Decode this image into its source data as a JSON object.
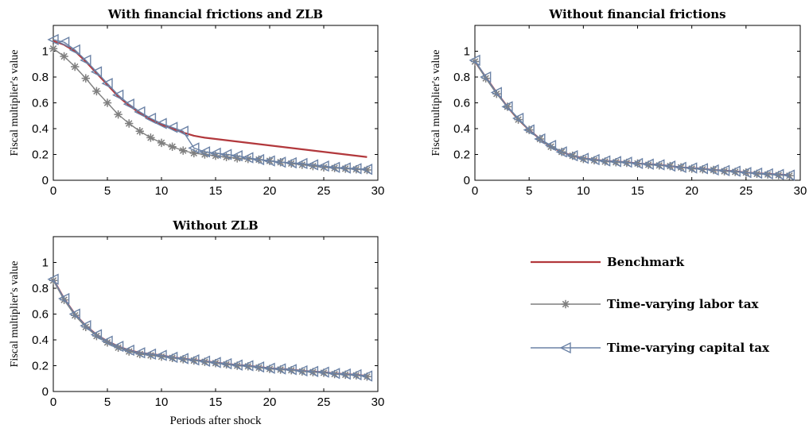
{
  "colors": {
    "benchmark": "#b2383c",
    "labor": "#7f7f7f",
    "capital": "#6b82a6"
  },
  "legend": {
    "placement": "bottom-right",
    "items": [
      {
        "label": "Benchmark",
        "marker": "none",
        "color": "#b2383c"
      },
      {
        "label": "Time-varying labor tax",
        "marker": "asterisk",
        "color": "#7f7f7f"
      },
      {
        "label": "Time-varying capital tax",
        "marker": "left-triangle",
        "color": "#6b82a6"
      }
    ]
  },
  "chart_data": [
    {
      "type": "line",
      "title": "With financial frictions and ZLB",
      "xlabel": "",
      "ylabel": "Fiscal multiplier's value",
      "xlim": [
        0,
        30
      ],
      "ylim": [
        0,
        1.2
      ],
      "xticks": [
        0,
        5,
        10,
        15,
        20,
        25,
        30
      ],
      "yticks": [
        0,
        0.2,
        0.4,
        0.6,
        0.8,
        1
      ],
      "grid": false,
      "x": [
        0,
        1,
        2,
        3,
        4,
        5,
        6,
        7,
        8,
        9,
        10,
        11,
        12,
        13,
        14,
        15,
        16,
        17,
        18,
        19,
        20,
        21,
        22,
        23,
        24,
        25,
        26,
        27,
        28,
        29
      ],
      "series": [
        {
          "name": "Benchmark",
          "values": [
            1.08,
            1.05,
            1.0,
            0.92,
            0.83,
            0.74,
            0.65,
            0.58,
            0.52,
            0.47,
            0.43,
            0.4,
            0.37,
            0.345,
            0.33,
            0.32,
            0.31,
            0.3,
            0.29,
            0.28,
            0.27,
            0.26,
            0.25,
            0.24,
            0.23,
            0.22,
            0.21,
            0.2,
            0.19,
            0.18
          ]
        },
        {
          "name": "Time-varying labor tax",
          "values": [
            1.02,
            0.96,
            0.88,
            0.79,
            0.69,
            0.6,
            0.51,
            0.44,
            0.38,
            0.33,
            0.29,
            0.26,
            0.23,
            0.21,
            0.2,
            0.19,
            0.18,
            0.17,
            0.165,
            0.16,
            0.15,
            0.14,
            0.13,
            0.12,
            0.11,
            0.1,
            0.095,
            0.09,
            0.085,
            0.08
          ]
        },
        {
          "name": "Time-varying capital tax",
          "values": [
            1.09,
            1.07,
            1.01,
            0.93,
            0.84,
            0.75,
            0.66,
            0.59,
            0.53,
            0.48,
            0.44,
            0.41,
            0.38,
            0.25,
            0.22,
            0.21,
            0.2,
            0.19,
            0.175,
            0.16,
            0.15,
            0.14,
            0.135,
            0.13,
            0.12,
            0.11,
            0.1,
            0.095,
            0.09,
            0.085
          ]
        }
      ]
    },
    {
      "type": "line",
      "title": "Without financial frictions",
      "xlabel": "",
      "ylabel": "Fiscal multiplier's value",
      "xlim": [
        0,
        30
      ],
      "ylim": [
        0,
        1.2
      ],
      "xticks": [
        0,
        5,
        10,
        15,
        20,
        25,
        30
      ],
      "yticks": [
        0,
        0.2,
        0.4,
        0.6,
        0.8,
        1
      ],
      "grid": false,
      "x": [
        0,
        1,
        2,
        3,
        4,
        5,
        6,
        7,
        8,
        9,
        10,
        11,
        12,
        13,
        14,
        15,
        16,
        17,
        18,
        19,
        20,
        21,
        22,
        23,
        24,
        25,
        26,
        27,
        28,
        29
      ],
      "series": [
        {
          "name": "Benchmark",
          "values": [
            0.92,
            0.8,
            0.68,
            0.57,
            0.47,
            0.39,
            0.32,
            0.26,
            0.22,
            0.19,
            0.17,
            0.16,
            0.15,
            0.145,
            0.14,
            0.13,
            0.125,
            0.12,
            0.11,
            0.1,
            0.095,
            0.09,
            0.08,
            0.075,
            0.07,
            0.06,
            0.055,
            0.05,
            0.045,
            0.04
          ]
        },
        {
          "name": "Time-varying labor tax",
          "values": [
            0.92,
            0.79,
            0.67,
            0.57,
            0.47,
            0.39,
            0.32,
            0.26,
            0.22,
            0.19,
            0.165,
            0.155,
            0.145,
            0.14,
            0.135,
            0.13,
            0.12,
            0.115,
            0.11,
            0.1,
            0.09,
            0.085,
            0.08,
            0.07,
            0.065,
            0.06,
            0.05,
            0.045,
            0.04,
            0.035
          ]
        },
        {
          "name": "Time-varying capital tax",
          "values": [
            0.93,
            0.8,
            0.68,
            0.57,
            0.48,
            0.39,
            0.32,
            0.27,
            0.22,
            0.19,
            0.17,
            0.16,
            0.15,
            0.145,
            0.14,
            0.13,
            0.125,
            0.12,
            0.11,
            0.1,
            0.095,
            0.09,
            0.08,
            0.075,
            0.07,
            0.06,
            0.055,
            0.05,
            0.045,
            0.04
          ]
        }
      ]
    },
    {
      "type": "line",
      "title": "Without ZLB",
      "xlabel": "Periods after shock",
      "ylabel": "Fiscal multiplier's value",
      "xlim": [
        0,
        30
      ],
      "ylim": [
        0,
        1.2
      ],
      "xticks": [
        0,
        5,
        10,
        15,
        20,
        25,
        30
      ],
      "yticks": [
        0,
        0.2,
        0.4,
        0.6,
        0.8,
        1
      ],
      "grid": false,
      "x": [
        0,
        1,
        2,
        3,
        4,
        5,
        6,
        7,
        8,
        9,
        10,
        11,
        12,
        13,
        14,
        15,
        16,
        17,
        18,
        19,
        20,
        21,
        22,
        23,
        24,
        25,
        26,
        27,
        28,
        29
      ],
      "series": [
        {
          "name": "Benchmark",
          "values": [
            0.87,
            0.72,
            0.6,
            0.51,
            0.44,
            0.39,
            0.35,
            0.32,
            0.3,
            0.29,
            0.28,
            0.265,
            0.255,
            0.245,
            0.235,
            0.225,
            0.215,
            0.205,
            0.2,
            0.19,
            0.18,
            0.175,
            0.17,
            0.16,
            0.155,
            0.15,
            0.14,
            0.135,
            0.13,
            0.12
          ]
        },
        {
          "name": "Time-varying labor tax",
          "values": [
            0.86,
            0.71,
            0.59,
            0.5,
            0.43,
            0.38,
            0.34,
            0.31,
            0.29,
            0.28,
            0.27,
            0.26,
            0.25,
            0.24,
            0.23,
            0.22,
            0.21,
            0.2,
            0.195,
            0.185,
            0.175,
            0.17,
            0.165,
            0.155,
            0.15,
            0.145,
            0.135,
            0.13,
            0.125,
            0.115
          ]
        },
        {
          "name": "Time-varying capital tax",
          "values": [
            0.87,
            0.72,
            0.6,
            0.51,
            0.44,
            0.39,
            0.35,
            0.32,
            0.3,
            0.29,
            0.28,
            0.265,
            0.255,
            0.245,
            0.235,
            0.225,
            0.215,
            0.205,
            0.2,
            0.19,
            0.18,
            0.175,
            0.17,
            0.16,
            0.155,
            0.15,
            0.14,
            0.135,
            0.13,
            0.12
          ]
        }
      ]
    }
  ]
}
